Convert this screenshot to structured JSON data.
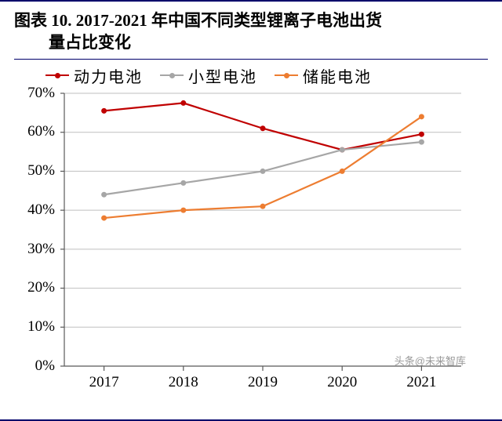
{
  "title_line1": "图表 10. 2017-2021 年中国不同类型锂离子电池出货",
  "title_line2": "量占比变化",
  "legend": [
    {
      "label": "动力电池",
      "color": "#c00000"
    },
    {
      "label": "小型电池",
      "color": "#a6a6a6"
    },
    {
      "label": "储能电池",
      "color": "#ed7d31"
    }
  ],
  "chart": {
    "type": "line",
    "categories": [
      "2017",
      "2018",
      "2019",
      "2020",
      "2021"
    ],
    "ylim": [
      0,
      70
    ],
    "ytick_step": 10,
    "ytick_suffix": "%",
    "series": [
      {
        "name": "动力电池",
        "color": "#c00000",
        "values": [
          65.5,
          67.5,
          61,
          55.5,
          59.5
        ],
        "line_width": 2.2,
        "marker_size": 7
      },
      {
        "name": "小型电池",
        "color": "#a6a6a6",
        "values": [
          44,
          47,
          50,
          55.5,
          57.5
        ],
        "line_width": 2.2,
        "marker_size": 7
      },
      {
        "name": "储能电池",
        "color": "#ed7d31",
        "values": [
          38,
          40,
          41,
          50,
          64
        ],
        "line_width": 2.2,
        "marker_size": 7
      }
    ],
    "grid_color": "#bfbfbf",
    "axis_color": "#595959",
    "tick_color": "#595959",
    "background_color": "#ffffff",
    "label_fontsize": 19
  },
  "watermark": "头条@未来智库"
}
